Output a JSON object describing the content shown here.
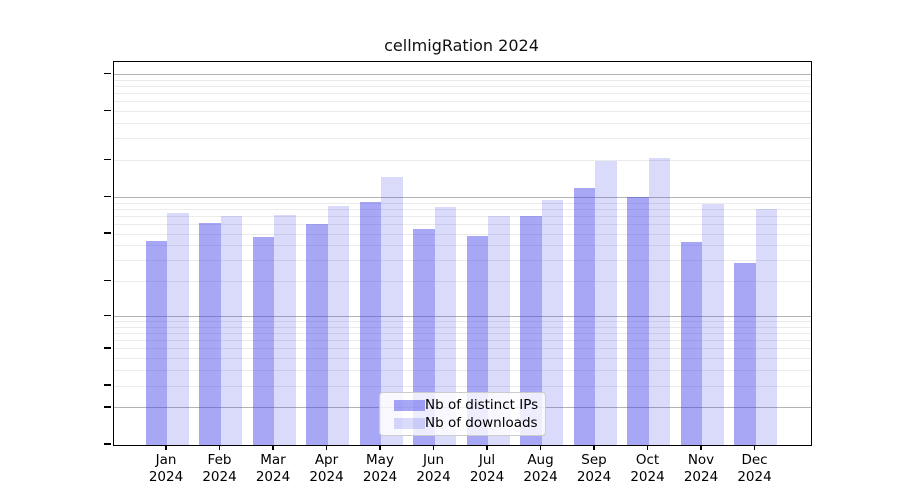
{
  "title": "cellmigRation 2024",
  "chart_data": {
    "type": "bar",
    "title": "cellmigRation 2024",
    "categories": [
      "Jan",
      "Feb",
      "Mar",
      "Apr",
      "May",
      "Jun",
      "Jul",
      "Aug",
      "Sep",
      "Oct",
      "Nov",
      "Dec"
    ],
    "category_year": "2024",
    "series": [
      {
        "name": "Nb of distinct IPs",
        "color": "rgba(60,60,235,0.45)",
        "values": [
          44,
          62,
          47,
          60,
          92,
          55,
          48,
          70,
          120,
          101,
          43,
          29
        ]
      },
      {
        "name": "Nb of downloads",
        "color": "rgba(60,60,235,0.19)",
        "values": [
          75,
          70,
          72,
          85,
          148,
          84,
          71,
          96,
          200,
          211,
          88,
          80
        ]
      }
    ],
    "yscale": "log1p",
    "ylim": [
      0,
      1260
    ],
    "yticks": [
      0,
      1,
      2,
      5,
      10,
      20,
      50,
      100,
      200,
      500,
      1000
    ],
    "major_gridlines": [
      1,
      10,
      100,
      1000
    ],
    "minor_gridlines": [
      2,
      3,
      4,
      5,
      6,
      7,
      8,
      9,
      20,
      30,
      40,
      50,
      60,
      70,
      80,
      90,
      200,
      300,
      400,
      500,
      600,
      700,
      800,
      900
    ],
    "grid": true,
    "legend_position": "lower center"
  },
  "colors": {
    "major_grid": "#b3b3b3",
    "minor_grid": "#ebebeb",
    "axis": "#000000",
    "background": "#ffffff",
    "text": "#000000",
    "legend_border": "#cccccc"
  },
  "legend": {
    "items": [
      {
        "label": "Nb of distinct IPs"
      },
      {
        "label": "Nb of downloads"
      }
    ]
  }
}
